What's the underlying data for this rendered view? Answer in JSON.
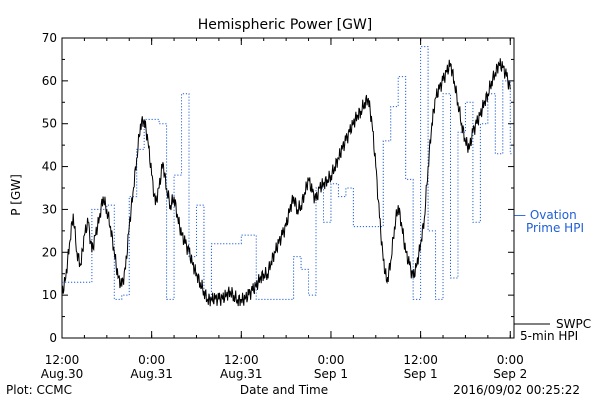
{
  "chart_data": {
    "type": "line",
    "title": "Hemispheric Power [GW]",
    "ylabel": "P [GW]",
    "xlabel": "Date and Time",
    "ylim": [
      0,
      70
    ],
    "yticks": [
      0,
      10,
      20,
      30,
      40,
      50,
      60,
      70
    ],
    "xlim_hours": [
      0,
      60
    ],
    "xticks": [
      {
        "h": 9,
        "top": "12:00",
        "bottom": "Aug.30"
      },
      {
        "h": 21,
        "top": "0:00",
        "bottom": "Aug.31"
      },
      {
        "h": 33,
        "top": "12:00",
        "bottom": "Aug.31"
      },
      {
        "h": 45,
        "top": "0:00",
        "bottom": "Sep 1"
      },
      {
        "h": 57,
        "top": "12:00",
        "bottom": "Sep 1"
      },
      {
        "h": 69,
        "top": "0:00",
        "bottom": "Sep 2"
      }
    ],
    "x_unit": "hours since 2016/08/29 12:00 (axis start ≈ 03:00 Aug 30)",
    "series": [
      {
        "name": "SWPC 5-min HPI",
        "style": "solid",
        "color": "#000000",
        "x": [
          0,
          0.5,
          1,
          1.5,
          2,
          2.5,
          3,
          3.5,
          4,
          4.5,
          5,
          5.5,
          6,
          6.5,
          7,
          7.5,
          8,
          8.5,
          9,
          9.5,
          10,
          10.5,
          11,
          11.5,
          12,
          12.5,
          13,
          13.5,
          14,
          14.5,
          15,
          15.5,
          16,
          16.5,
          17,
          17.5,
          18,
          18.5,
          19,
          19.5,
          20,
          20.5,
          21,
          21.5,
          22,
          22.5,
          23,
          23.5,
          24,
          24.5,
          25,
          25.5,
          26,
          26.5,
          27,
          27.5,
          28,
          28.5,
          29,
          29.5,
          30,
          30.5,
          31,
          31.5,
          32,
          32.5,
          33,
          33.5,
          34,
          34.5,
          35,
          35.5,
          36,
          36.5,
          37,
          37.5,
          38,
          38.5,
          39,
          39.5,
          40,
          40.5,
          41,
          41.5,
          42,
          42.5,
          43,
          43.5,
          44,
          44.5,
          45,
          45.5,
          46,
          46.5,
          47,
          47.5,
          48,
          48.5,
          49,
          49.5,
          50,
          50.5,
          51,
          51.5,
          52,
          52.5,
          53,
          53.5,
          54,
          54.5,
          55,
          55.5,
          56,
          56.5,
          57,
          57.5,
          58,
          58.5,
          59,
          59.5,
          60
        ],
        "y": [
          10,
          14,
          22,
          29,
          20,
          17,
          24,
          27,
          20,
          24,
          28,
          33,
          30,
          26,
          20,
          14,
          12,
          16,
          26,
          34,
          42,
          50,
          51,
          46,
          38,
          31,
          35,
          41,
          35,
          31,
          33,
          28,
          24,
          22,
          20,
          17,
          15,
          13,
          11,
          9,
          9,
          9,
          9,
          9,
          10,
          11,
          10,
          9,
          9,
          9,
          10,
          11,
          12,
          14,
          15,
          15,
          18,
          20,
          22,
          24,
          26,
          30,
          33,
          30,
          31,
          34,
          37,
          34,
          32,
          35,
          36,
          37,
          38,
          40,
          42,
          44,
          46,
          48,
          50,
          52,
          53,
          55,
          56,
          50,
          40,
          28,
          18,
          13,
          18,
          26,
          31,
          26,
          20,
          17,
          14,
          17,
          22,
          28,
          40,
          50,
          56,
          58,
          60,
          62,
          64,
          60,
          55,
          50,
          46,
          44,
          48,
          50,
          52,
          55,
          57,
          60,
          62,
          64,
          63,
          61,
          58
        ],
        "note": "x above spans 0–60 (axis hours) sampled ~every 0.5h"
      },
      {
        "name": "Ovation Prime HPI",
        "style": "dotted",
        "color": "#1f5fd8",
        "step_x": [
          0,
          2,
          4,
          6,
          7,
          8,
          9,
          10,
          11,
          12,
          13,
          14,
          15,
          16,
          17,
          18,
          19,
          20,
          21,
          22,
          23,
          24,
          26,
          28,
          30,
          31,
          32,
          33,
          34,
          35,
          36,
          37,
          38,
          39,
          40,
          41,
          42,
          43,
          44,
          45,
          46,
          47,
          48,
          49,
          50,
          51,
          52,
          53,
          54,
          55,
          56,
          57,
          58,
          59,
          60
        ],
        "step_y": [
          13,
          13,
          30,
          31,
          9,
          10,
          33,
          44,
          51,
          51,
          50,
          9,
          38,
          57,
          19,
          31,
          10,
          22,
          22,
          22,
          22,
          24,
          9,
          9,
          9,
          19,
          16,
          10,
          35,
          27,
          36,
          33,
          35,
          26,
          26,
          26,
          26,
          46,
          54,
          61,
          37,
          9,
          68,
          25,
          9,
          57,
          14,
          48,
          55,
          27,
          50,
          57,
          43,
          60,
          43
        ]
      }
    ],
    "legend": [
      {
        "label_line1": "— Ovation",
        "label_line2": "Prime HPI",
        "color": "#1f5fd8"
      },
      {
        "label_line1": "SWPC",
        "label_line2": "5-min HPI",
        "color": "#000000"
      }
    ],
    "footer_left": "Plot: CCMC",
    "footer_right": "2016/09/02 00:25:22"
  }
}
